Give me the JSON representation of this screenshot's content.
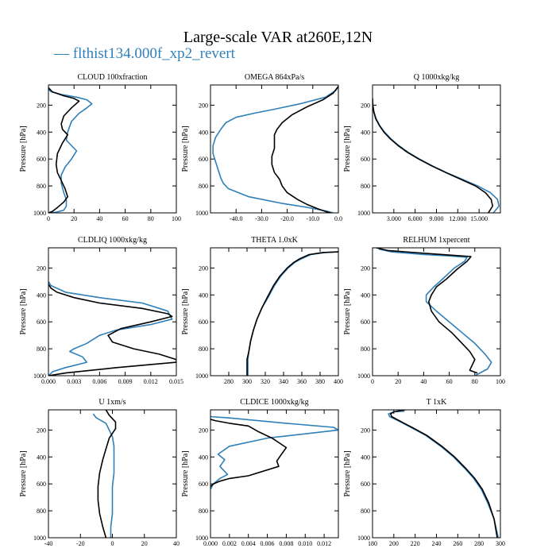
{
  "title": "Large-scale VAR at260E,12N",
  "legend": {
    "label": "— flthist134.000f_xp2_revert",
    "color": "#2f80b8"
  },
  "colors": {
    "series_blue": "#2f80b8",
    "series_black": "#000000"
  },
  "chart_data": [
    {
      "type": "line",
      "title": "CLOUD  100xfraction",
      "ylabel": "Pressure [hPa]",
      "xlim": [
        0,
        100
      ],
      "ylim": [
        1000,
        50
      ],
      "xticks": [
        0,
        20,
        40,
        60,
        80,
        100
      ],
      "xticklabels": [
        "0",
        "20",
        "40",
        "60",
        "80",
        "100"
      ],
      "yticks": [
        200,
        400,
        600,
        800,
        1000
      ],
      "yticklabels": [
        "200",
        "400",
        "600",
        "800",
        "1000"
      ],
      "series": [
        {
          "color": "#2f80b8",
          "x": [
            0,
            2,
            10,
            22,
            30,
            34,
            30,
            24,
            18,
            15,
            14,
            19,
            22,
            18,
            13,
            10,
            10,
            12,
            14,
            14,
            12,
            6,
            1
          ],
          "y": [
            80,
            100,
            120,
            140,
            160,
            190,
            220,
            260,
            320,
            400,
            460,
            510,
            540,
            600,
            660,
            720,
            780,
            850,
            900,
            950,
            980,
            995,
            1000
          ]
        },
        {
          "color": "#000000",
          "x": [
            0,
            3,
            12,
            20,
            24,
            18,
            12,
            10,
            11,
            15,
            11,
            7,
            6,
            7,
            10,
            13,
            15,
            12,
            7,
            3,
            0
          ],
          "y": [
            70,
            100,
            130,
            150,
            170,
            220,
            280,
            340,
            380,
            420,
            480,
            560,
            640,
            700,
            760,
            820,
            880,
            920,
            960,
            990,
            1000
          ]
        }
      ]
    },
    {
      "type": "line",
      "title": "OMEGA  864xPa/s",
      "ylabel": "Pressure [hPa]",
      "xlim": [
        -50,
        0
      ],
      "ylim": [
        1000,
        50
      ],
      "xticks": [
        -40,
        -30,
        -20,
        -10,
        0
      ],
      "xticklabels": [
        "-40.0",
        "-30.0",
        "-20.0",
        "-10.0",
        "0.0"
      ],
      "yticks": [
        200,
        400,
        600,
        800,
        1000
      ],
      "yticklabels": [
        "200",
        "400",
        "600",
        "800",
        "1000"
      ],
      "series": [
        {
          "color": "#2f80b8",
          "x": [
            0,
            -1,
            -5,
            -15,
            -25,
            -33,
            -40,
            -44,
            -46,
            -48,
            -49,
            -49,
            -48,
            -47,
            -46,
            -45,
            -43,
            -35,
            -22,
            -12,
            -5,
            -2
          ],
          "y": [
            60,
            90,
            140,
            190,
            230,
            260,
            290,
            330,
            380,
            440,
            500,
            560,
            620,
            680,
            740,
            780,
            820,
            880,
            930,
            960,
            985,
            1000
          ]
        },
        {
          "color": "#000000",
          "x": [
            0,
            -2,
            -6,
            -12,
            -18,
            -22,
            -24,
            -25,
            -25,
            -25,
            -26,
            -26,
            -25,
            -23,
            -22,
            -20,
            -16,
            -12,
            -8,
            -5,
            -3
          ],
          "y": [
            60,
            110,
            160,
            210,
            270,
            330,
            380,
            420,
            470,
            520,
            580,
            640,
            700,
            750,
            800,
            850,
            900,
            940,
            970,
            990,
            1000
          ]
        }
      ]
    },
    {
      "type": "line",
      "title": "Q  1000xkg/kg",
      "ylabel": "Pressure [hPa]",
      "xlim": [
        0,
        18000
      ],
      "ylim": [
        1000,
        50
      ],
      "xticks": [
        3000,
        6000,
        9000,
        12000,
        15000
      ],
      "xticklabels": [
        "3.000",
        "6.000",
        "9.000",
        "12.000",
        "15.000"
      ],
      "yticks": [
        200,
        400,
        600,
        800,
        1000
      ],
      "yticklabels": [
        "200",
        "400",
        "600",
        "800",
        "1000"
      ],
      "series": [
        {
          "color": "#2f80b8",
          "x": [
            0,
            50,
            200,
            500,
            1000,
            1700,
            2600,
            3700,
            5000,
            6600,
            8400,
            10400,
            12600,
            14800,
            16600,
            17600,
            17800,
            17000
          ],
          "y": [
            150,
            200,
            250,
            300,
            350,
            400,
            450,
            500,
            550,
            600,
            650,
            700,
            750,
            800,
            850,
            900,
            950,
            1000
          ]
        },
        {
          "color": "#000000",
          "x": [
            0,
            40,
            180,
            450,
            950,
            1600,
            2500,
            3600,
            4900,
            6500,
            8300,
            10300,
            12400,
            14500,
            15900,
            16700,
            16900,
            16300
          ],
          "y": [
            150,
            200,
            250,
            300,
            350,
            400,
            450,
            500,
            550,
            600,
            650,
            700,
            750,
            800,
            850,
            900,
            950,
            1000
          ]
        }
      ]
    },
    {
      "type": "line",
      "title": "CLDLIQ  1000xkg/kg",
      "ylabel": "Pressure [hPa]",
      "xlim": [
        0,
        0.015
      ],
      "ylim": [
        1000,
        50
      ],
      "xticks": [
        0,
        0.003,
        0.006,
        0.009,
        0.012,
        0.015
      ],
      "xticklabels": [
        "0.000",
        "0.003",
        "0.006",
        "0.009",
        "0.012",
        "0.015"
      ],
      "yticks": [
        200,
        400,
        600,
        800,
        1000
      ],
      "yticklabels": [
        "200",
        "400",
        "600",
        "800",
        "1000"
      ],
      "series": [
        {
          "color": "#2f80b8",
          "x": [
            0,
            0.0003,
            0.002,
            0.006,
            0.011,
            0.014,
            0.0145,
            0.012,
            0.008,
            0.006,
            0.0045,
            0.003,
            0.0025,
            0.004,
            0.0045,
            0.002,
            0.0005,
            0
          ],
          "y": [
            300,
            330,
            380,
            420,
            460,
            520,
            580,
            620,
            660,
            700,
            760,
            800,
            820,
            860,
            900,
            940,
            970,
            1000
          ]
        },
        {
          "color": "#000000",
          "x": [
            0,
            0.0003,
            0.001,
            0.003,
            0.006,
            0.011,
            0.014,
            0.0145,
            0.012,
            0.0085,
            0.007,
            0.0075,
            0.01,
            0.013,
            0.015,
            0.015,
            0.008,
            0.002,
            0
          ],
          "y": [
            320,
            350,
            380,
            420,
            460,
            500,
            540,
            560,
            600,
            650,
            700,
            750,
            800,
            840,
            880,
            900,
            940,
            980,
            1000
          ]
        }
      ]
    },
    {
      "type": "line",
      "title": "THETA  1.0xK",
      "ylabel": "Pressure [hPa]",
      "xlim": [
        260,
        400
      ],
      "ylim": [
        1000,
        50
      ],
      "xticks": [
        280,
        300,
        320,
        340,
        360,
        380,
        400
      ],
      "xticklabels": [
        "280",
        "300",
        "320",
        "340",
        "360",
        "380",
        "400"
      ],
      "yticks": [
        200,
        400,
        600,
        800,
        1000
      ],
      "yticklabels": [
        "200",
        "400",
        "600",
        "800",
        "1000"
      ],
      "series": [
        {
          "color": "#2f80b8",
          "x": [
            400,
            385,
            370,
            360,
            352,
            345,
            337,
            330,
            323,
            316,
            311,
            307,
            304,
            302,
            301,
            301,
            301
          ],
          "y": [
            80,
            85,
            100,
            130,
            160,
            200,
            260,
            330,
            420,
            500,
            580,
            660,
            740,
            820,
            880,
            940,
            1000
          ]
        },
        {
          "color": "#000000",
          "x": [
            400,
            383,
            368,
            358,
            351,
            344,
            336,
            329,
            322,
            316,
            311,
            307,
            304,
            302,
            300,
            300,
            300
          ],
          "y": [
            80,
            85,
            100,
            130,
            160,
            200,
            260,
            330,
            420,
            500,
            580,
            660,
            740,
            820,
            880,
            940,
            1000
          ]
        }
      ]
    },
    {
      "type": "line",
      "title": "RELHUM  1xpercent",
      "ylabel": "Pressure [hPa]",
      "xlim": [
        0,
        100
      ],
      "ylim": [
        1000,
        50
      ],
      "xticks": [
        0,
        20,
        40,
        60,
        80,
        100
      ],
      "xticklabels": [
        "0",
        "20",
        "40",
        "60",
        "80",
        "100"
      ],
      "yticks": [
        200,
        400,
        600,
        800,
        1000
      ],
      "yticklabels": [
        "200",
        "400",
        "600",
        "800",
        "1000"
      ],
      "series": [
        {
          "color": "#2f80b8",
          "x": [
            5,
            15,
            40,
            60,
            74,
            72,
            64,
            55,
            48,
            42,
            42,
            50,
            60,
            70,
            80,
            88,
            93,
            90,
            80
          ],
          "y": [
            60,
            80,
            100,
            110,
            120,
            150,
            200,
            280,
            340,
            400,
            450,
            520,
            600,
            680,
            760,
            840,
            900,
            950,
            1000
          ]
        },
        {
          "color": "#000000",
          "x": [
            3,
            12,
            40,
            62,
            77,
            74,
            66,
            58,
            50,
            46,
            44,
            46,
            52,
            62,
            70,
            76,
            80,
            78,
            76,
            82
          ],
          "y": [
            50,
            70,
            90,
            105,
            115,
            150,
            210,
            280,
            340,
            400,
            450,
            520,
            600,
            680,
            760,
            820,
            880,
            920,
            960,
            980
          ]
        }
      ]
    },
    {
      "type": "line",
      "title": "U  1xm/s",
      "ylabel": "Pressure [hPa]",
      "xlim": [
        -40,
        40
      ],
      "ylim": [
        1000,
        50
      ],
      "xticks": [
        -40,
        -20,
        0,
        20,
        40
      ],
      "xticklabels": [
        "-40",
        "-20",
        "0",
        "20",
        "40"
      ],
      "yticks": [
        200,
        400,
        600,
        800,
        1000
      ],
      "yticklabels": [
        "200",
        "400",
        "600",
        "800",
        "1000"
      ],
      "series": [
        {
          "color": "#2f80b8",
          "x": [
            -12,
            -10,
            -4,
            -2,
            0,
            1,
            1,
            1,
            0,
            0,
            0,
            -1,
            -1
          ],
          "y": [
            80,
            110,
            150,
            200,
            250,
            320,
            420,
            520,
            620,
            720,
            820,
            920,
            1000
          ]
        },
        {
          "color": "#000000",
          "x": [
            -4,
            -2,
            2,
            2,
            -2,
            -4,
            -6,
            -8,
            -9,
            -9,
            -8,
            -6,
            -4
          ],
          "y": [
            50,
            90,
            140,
            190,
            260,
            340,
            420,
            520,
            620,
            720,
            820,
            920,
            1000
          ]
        }
      ]
    },
    {
      "type": "line",
      "title": "CLDICE  1000xkg/kg",
      "ylabel": "Pressure [hPa]",
      "xlim": [
        0,
        0.0135
      ],
      "ylim": [
        1000,
        50
      ],
      "xticks": [
        0,
        0.002,
        0.004,
        0.006,
        0.008,
        0.01,
        0.012
      ],
      "xticklabels": [
        "0.000",
        "0.002",
        "0.004",
        "0.006",
        "0.008",
        "0.010",
        "0.012"
      ],
      "yticks": [
        200,
        400,
        600,
        800,
        1000
      ],
      "yticklabels": [
        "200",
        "400",
        "600",
        "800",
        "1000"
      ],
      "series": [
        {
          "color": "#2f80b8",
          "x": [
            0,
            0.002,
            0.008,
            0.013,
            0.0135,
            0.011,
            0.006,
            0.002,
            0.0008,
            0.0015,
            0.001,
            0.0018,
            0.001,
            0.0003,
            0
          ],
          "y": [
            100,
            110,
            150,
            180,
            200,
            220,
            260,
            320,
            380,
            420,
            470,
            530,
            560,
            600,
            640
          ]
        },
        {
          "color": "#000000",
          "x": [
            0,
            0.0005,
            0.002,
            0.004,
            0.005,
            0.0065,
            0.008,
            0.0075,
            0.007,
            0.0072,
            0.004,
            0.002,
            0.001,
            0.0003,
            0
          ],
          "y": [
            120,
            130,
            150,
            170,
            210,
            260,
            330,
            380,
            430,
            470,
            540,
            560,
            580,
            600,
            620
          ]
        }
      ]
    },
    {
      "type": "line",
      "title": "T  1xK",
      "ylabel": "Pressure [hPa]",
      "xlim": [
        180,
        300
      ],
      "ylim": [
        1000,
        50
      ],
      "xticks": [
        180,
        200,
        220,
        240,
        260,
        280,
        300
      ],
      "xticklabels": [
        "180",
        "200",
        "220",
        "240",
        "260",
        "280",
        "300"
      ],
      "yticks": [
        200,
        400,
        600,
        800,
        1000
      ],
      "yticklabels": [
        "200",
        "400",
        "600",
        "800",
        "1000"
      ],
      "series": [
        {
          "color": "#2f80b8",
          "x": [
            210,
            200,
            195,
            196,
            204,
            216,
            230,
            244,
            256,
            266,
            275,
            282,
            288,
            294,
            298
          ],
          "y": [
            60,
            65,
            80,
            100,
            130,
            180,
            240,
            320,
            400,
            480,
            560,
            640,
            740,
            860,
            1000
          ]
        },
        {
          "color": "#000000",
          "x": [
            220,
            210,
            200,
            197,
            198,
            205,
            217,
            231,
            245,
            257,
            267,
            276,
            283,
            289,
            294,
            297
          ],
          "y": [
            40,
            50,
            65,
            80,
            100,
            130,
            180,
            240,
            320,
            400,
            480,
            560,
            640,
            740,
            860,
            1000
          ]
        }
      ]
    }
  ]
}
